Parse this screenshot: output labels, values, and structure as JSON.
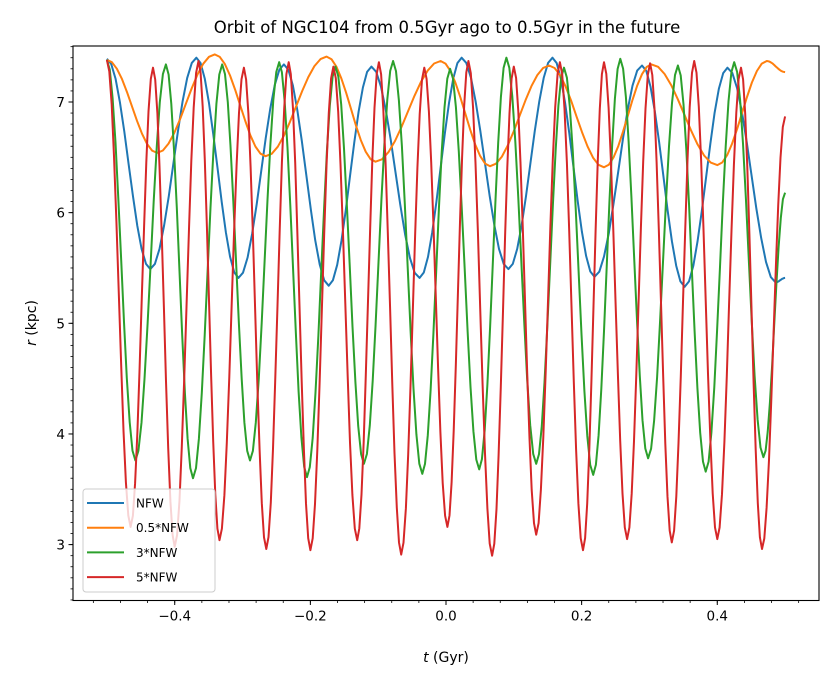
{
  "chart_data": {
    "type": "line",
    "title": "Orbit of NGC104 from 0.5Gyr ago to 0.5Gyr in the future",
    "xlabel": {
      "var": "t",
      "unit": " (Gyr)"
    },
    "ylabel": {
      "var": "r",
      "unit": " (kpc)"
    },
    "xlim": [
      -0.55,
      0.55
    ],
    "ylim": [
      2.495,
      7.506
    ],
    "xticks": [
      -0.4,
      -0.2,
      0.0,
      0.2,
      0.4
    ],
    "xtick_labels": [
      "−0.4",
      "−0.2",
      "0.0",
      "0.2",
      "0.4"
    ],
    "xminor_step": 0.04,
    "yticks": [
      3,
      4,
      5,
      6,
      7
    ],
    "ytick_labels": [
      "3",
      "4",
      "5",
      "6",
      "7"
    ],
    "yminor_step": 0.1,
    "grid": false,
    "legend_position": "lower-left",
    "series": [
      {
        "name": "NFW",
        "color": "#1f77b4",
        "points": [
          [
            -0.5,
            7.39
          ],
          [
            -0.436,
            5.49
          ],
          [
            -0.368,
            7.4
          ],
          [
            -0.306,
            5.41
          ],
          [
            -0.239,
            7.34
          ],
          [
            -0.173,
            5.34
          ],
          [
            -0.11,
            7.32
          ],
          [
            -0.039,
            5.41
          ],
          [
            0.023,
            7.4
          ],
          [
            0.092,
            5.49
          ],
          [
            0.157,
            7.4
          ],
          [
            0.219,
            5.42
          ],
          [
            0.289,
            7.33
          ],
          [
            0.352,
            5.33
          ],
          [
            0.415,
            7.31
          ],
          [
            0.486,
            5.37
          ],
          [
            0.5,
            5.41
          ]
        ]
      },
      {
        "name": "0.5*NFW",
        "color": "#ff7f0e",
        "points": [
          [
            -0.5,
            7.38
          ],
          [
            -0.426,
            6.54
          ],
          [
            -0.341,
            7.43
          ],
          [
            -0.266,
            6.51
          ],
          [
            -0.176,
            7.41
          ],
          [
            -0.104,
            6.46
          ],
          [
            -0.008,
            7.37
          ],
          [
            0.065,
            6.42
          ],
          [
            0.152,
            7.33
          ],
          [
            0.233,
            6.41
          ],
          [
            0.303,
            7.34
          ],
          [
            0.4,
            6.43
          ],
          [
            0.473,
            7.37
          ],
          [
            0.5,
            7.27
          ]
        ]
      },
      {
        "name": "3*NFW",
        "color": "#2ca02c",
        "points": [
          [
            -0.5,
            7.38
          ],
          [
            -0.458,
            3.76
          ],
          [
            -0.413,
            7.34
          ],
          [
            -0.373,
            3.6
          ],
          [
            -0.33,
            7.34
          ],
          [
            -0.289,
            3.76
          ],
          [
            -0.246,
            7.36
          ],
          [
            -0.205,
            3.61
          ],
          [
            -0.163,
            7.32
          ],
          [
            -0.121,
            3.73
          ],
          [
            -0.078,
            7.37
          ],
          [
            -0.035,
            3.64
          ],
          [
            0.006,
            7.3
          ],
          [
            0.049,
            3.68
          ],
          [
            0.089,
            7.4
          ],
          [
            0.133,
            3.73
          ],
          [
            0.174,
            7.31
          ],
          [
            0.217,
            3.63
          ],
          [
            0.257,
            7.39
          ],
          [
            0.298,
            3.78
          ],
          [
            0.342,
            7.33
          ],
          [
            0.383,
            3.66
          ],
          [
            0.425,
            7.36
          ],
          [
            0.468,
            3.79
          ],
          [
            0.5,
            6.18
          ]
        ]
      },
      {
        "name": "5*NFW",
        "color": "#d62728",
        "points": [
          [
            -0.5,
            7.38
          ],
          [
            -0.465,
            3.16
          ],
          [
            -0.432,
            7.31
          ],
          [
            -0.4,
            2.98
          ],
          [
            -0.365,
            7.37
          ],
          [
            -0.334,
            3.04
          ],
          [
            -0.298,
            7.31
          ],
          [
            -0.265,
            2.96
          ],
          [
            -0.232,
            7.36
          ],
          [
            -0.2,
            2.95
          ],
          [
            -0.166,
            7.32
          ],
          [
            -0.131,
            3.04
          ],
          [
            -0.099,
            7.36
          ],
          [
            -0.066,
            2.91
          ],
          [
            -0.032,
            7.31
          ],
          [
            0.002,
            3.16
          ],
          [
            0.033,
            7.37
          ],
          [
            0.068,
            2.9
          ],
          [
            0.1,
            7.32
          ],
          [
            0.133,
            3.09
          ],
          [
            0.168,
            7.36
          ],
          [
            0.202,
            2.95
          ],
          [
            0.233,
            7.36
          ],
          [
            0.267,
            3.05
          ],
          [
            0.301,
            7.35
          ],
          [
            0.333,
            3.02
          ],
          [
            0.366,
            7.37
          ],
          [
            0.4,
            3.05
          ],
          [
            0.435,
            7.31
          ],
          [
            0.466,
            2.96
          ],
          [
            0.5,
            6.87
          ]
        ]
      }
    ]
  }
}
